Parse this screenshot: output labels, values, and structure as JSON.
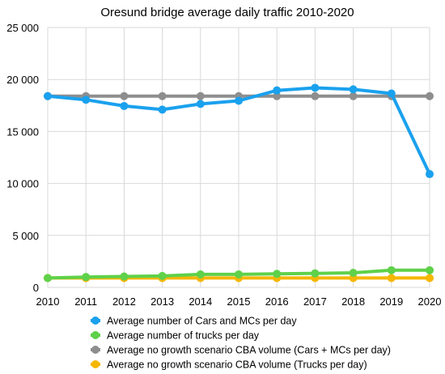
{
  "chart_data": {
    "type": "line",
    "title": "Oresund bridge average daily traffic 2010-2020",
    "xlabel": "",
    "ylabel": "",
    "x": [
      "2010",
      "2011",
      "2012",
      "2013",
      "2014",
      "2015",
      "2016",
      "2017",
      "2018",
      "2019",
      "2020"
    ],
    "ylim": [
      0,
      25000
    ],
    "yticks": [
      0,
      5000,
      10000,
      15000,
      20000,
      25000
    ],
    "ytick_labels": [
      "0",
      "5 000",
      "10 000",
      "15 000",
      "20 000",
      "25 000"
    ],
    "grid": true,
    "legend_position": "bottom",
    "series": [
      {
        "name": "Average number of Cars and MCs per day",
        "color": "#1aa1ee",
        "values": [
          18400,
          18050,
          17450,
          17100,
          17650,
          17950,
          18950,
          19200,
          19050,
          18650,
          10900
        ]
      },
      {
        "name": "Average number of trucks per day",
        "color": "#5fd14a",
        "values": [
          900,
          1000,
          1050,
          1100,
          1250,
          1250,
          1300,
          1350,
          1400,
          1650,
          1650
        ]
      },
      {
        "name": "Average no growth scenario CBA volume (Cars + MCs per day)",
        "color": "#8e8e8e",
        "values": [
          18400,
          18400,
          18400,
          18400,
          18400,
          18400,
          18400,
          18400,
          18400,
          18400,
          18400
        ]
      },
      {
        "name": "Average no growth scenario CBA volume (Trucks per day)",
        "color": "#f5b700",
        "values": [
          900,
          900,
          900,
          900,
          900,
          900,
          900,
          900,
          900,
          900,
          900
        ]
      }
    ]
  }
}
